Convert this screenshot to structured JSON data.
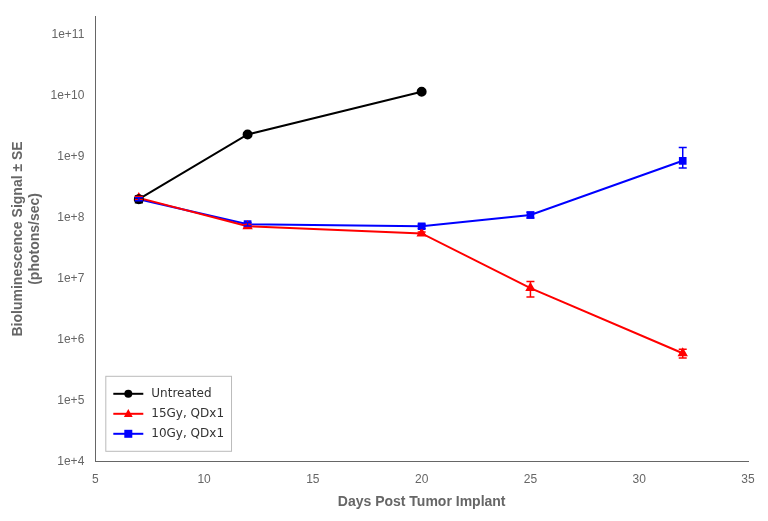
{
  "chart_data": {
    "type": "line",
    "xlabel": "Days Post Tumor Implant",
    "ylabel": "Bioluminescence Signal ± SE\n(photons/sec)",
    "xlim": [
      5,
      35
    ],
    "ylim": [
      10000.0,
      200000000000.0
    ],
    "xticks": [
      5,
      10,
      15,
      20,
      25,
      30,
      35
    ],
    "yticks": [
      {
        "value": 10000.0,
        "label": "1e+4"
      },
      {
        "value": 100000.0,
        "label": "1e+5"
      },
      {
        "value": 1000000.0,
        "label": "1e+6"
      },
      {
        "value": 10000000.0,
        "label": "1e+7"
      },
      {
        "value": 100000000.0,
        "label": "1e+8"
      },
      {
        "value": 1000000000.0,
        "label": "1e+9"
      },
      {
        "value": 10000000000.0,
        "label": "1e+10"
      },
      {
        "value": 100000000000.0,
        "label": "1e+11"
      }
    ],
    "log": "y",
    "grid": false,
    "legend": "lower left",
    "series": [
      {
        "name": "Untreated",
        "color": "black",
        "marker": "circle",
        "x": [
          7,
          12,
          20
        ],
        "values": [
          200000000.0,
          2300000000.0,
          11500000000.0
        ],
        "yerr_low": [
          25000000.0,
          130000000.0,
          200000000.0
        ],
        "yerr_high": [
          25000000.0,
          130000000.0,
          200000000.0
        ]
      },
      {
        "name": "15Gy, QDx1",
        "color": "red",
        "marker": "triangle",
        "x": [
          7,
          12,
          20,
          25,
          32
        ],
        "values": [
          210000000.0,
          72000000.0,
          55000000.0,
          7000000.0,
          600000.0
        ],
        "yerr_low": [
          12000000.0,
          5000000.0,
          3000000.0,
          2000000.0,
          100000.0
        ],
        "yerr_high": [
          12000000.0,
          5000000.0,
          3000000.0,
          2000000.0,
          100000.0
        ]
      },
      {
        "name": "10Gy, QDx1",
        "color": "blue",
        "marker": "square",
        "x": [
          7,
          12,
          20,
          25,
          32
        ],
        "values": [
          200000000.0,
          78000000.0,
          72000000.0,
          110000000.0,
          850000000.0
        ],
        "yerr_low": [
          12000000.0,
          5000000.0,
          6000000.0,
          12000000.0,
          200000000.0
        ],
        "yerr_high": [
          12000000.0,
          5000000.0,
          6000000.0,
          12000000.0,
          550000000.0
        ]
      }
    ]
  }
}
